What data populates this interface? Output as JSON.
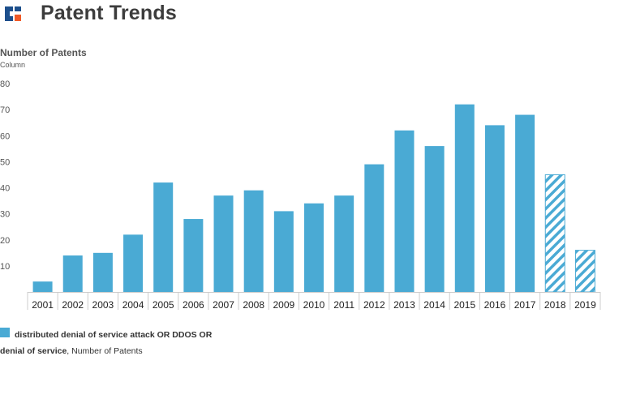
{
  "header": {
    "title": "Patent Trends",
    "logo_icon": "company-logo-icon"
  },
  "colors": {
    "bar": "#4aaad4",
    "logo_primary": "#1d4f8c",
    "logo_accent": "#f05a28",
    "axis": "#cccccc"
  },
  "chart_data": {
    "type": "bar",
    "title": "Number of Patents",
    "subtitle": "Column",
    "xlabel": "",
    "ylabel": "Number of Patents",
    "ylim": [
      0,
      80
    ],
    "yticks": [
      10,
      20,
      30,
      40,
      50,
      60,
      70,
      80
    ],
    "categories": [
      "2001",
      "2002",
      "2003",
      "2004",
      "2005",
      "2006",
      "2007",
      "2008",
      "2009",
      "2010",
      "2011",
      "2012",
      "2013",
      "2014",
      "2015",
      "2016",
      "2017",
      "2018",
      "2019"
    ],
    "values": [
      4,
      14,
      15,
      22,
      42,
      28,
      37,
      39,
      31,
      34,
      37,
      49,
      62,
      56,
      72,
      64,
      68,
      45,
      16
    ],
    "hatched": [
      false,
      false,
      false,
      false,
      false,
      false,
      false,
      false,
      false,
      false,
      false,
      false,
      false,
      false,
      false,
      false,
      false,
      true,
      true
    ],
    "series": [
      {
        "name": "distributed denial of service attack OR DDOS OR denial of service",
        "measure": ", Number of Patents"
      }
    ],
    "legend_position": "bottom-left"
  }
}
